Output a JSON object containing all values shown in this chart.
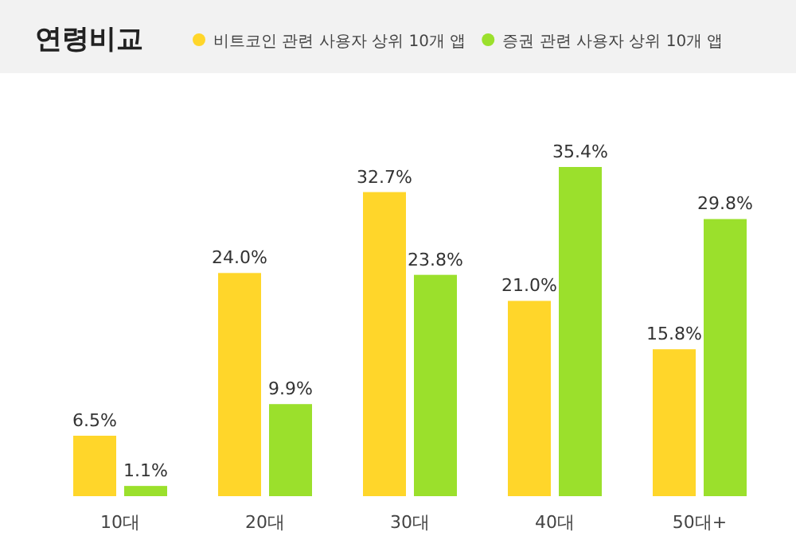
{
  "chart_data": {
    "type": "bar",
    "title": "연령비교",
    "categories": [
      "10대",
      "20대",
      "30대",
      "40대",
      "50대+"
    ],
    "series": [
      {
        "name": "비트코인 관련 사용자 상위 10개 앱",
        "color": "#ffd62a",
        "values": [
          6.5,
          24.0,
          32.7,
          21.0,
          15.8
        ],
        "value_labels": [
          "6.5%",
          "24.0%",
          "32.7%",
          "21.0%",
          "15.8%"
        ]
      },
      {
        "name": "증권 관련 사용자 상위 10개 앱",
        "color": "#9be02c",
        "values": [
          1.1,
          9.9,
          23.8,
          35.4,
          29.8
        ],
        "value_labels": [
          "1.1%",
          "9.9%",
          "23.8%",
          "35.4%",
          "29.8%"
        ]
      }
    ],
    "legend": "top"
  }
}
